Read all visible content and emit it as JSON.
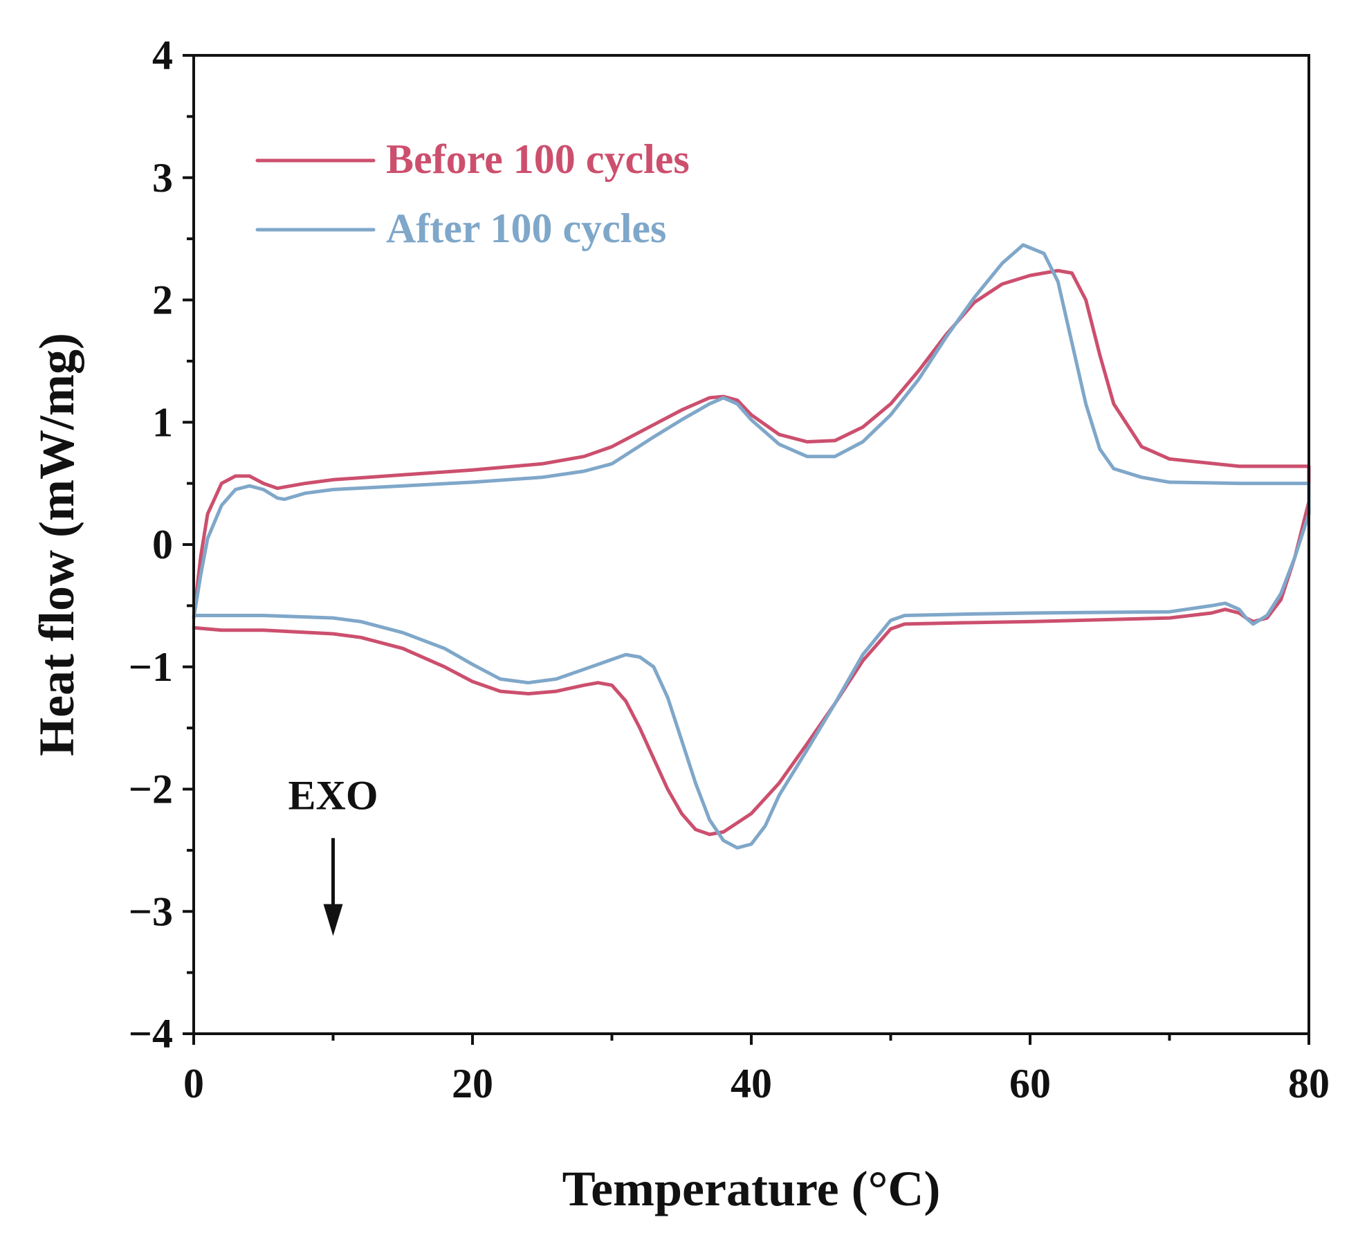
{
  "chart_data": {
    "type": "line",
    "xlabel": "Temperature (°C)",
    "ylabel": "Heat flow (mW/mg)",
    "xlim": [
      0,
      80
    ],
    "ylim": [
      -4,
      4
    ],
    "xticks": [
      0,
      20,
      40,
      60,
      80
    ],
    "yticks": [
      -4,
      -3,
      -2,
      -1,
      0,
      1,
      2,
      3,
      4
    ],
    "ytick_labels": [
      "−4",
      "−3",
      "−2",
      "−1",
      "0",
      "1",
      "2",
      "3",
      "4"
    ],
    "xminor_step": 10,
    "yminor_step": 0.5,
    "grid": false,
    "legend_position": "top-left",
    "annotation": {
      "text": "EXO",
      "x": 10,
      "y": -2.05,
      "arrow_from_y": -2.4,
      "arrow_to_y": -3.2
    },
    "series": [
      {
        "name": "Before 100 cycles",
        "color": "#cc4f6e",
        "x": [
          0,
          0.5,
          1,
          2,
          3,
          4,
          5,
          6,
          8,
          10,
          15,
          20,
          25,
          28,
          30,
          33,
          35,
          37,
          38,
          39,
          40,
          42,
          44,
          46,
          48,
          50,
          52,
          54,
          56,
          58,
          60,
          62,
          63,
          64,
          65,
          66,
          68,
          70,
          75,
          80,
          80,
          79,
          78,
          77,
          76,
          75.5,
          75,
          74,
          73,
          70,
          60,
          55,
          51,
          50,
          48,
          46,
          44,
          42,
          40,
          38,
          37,
          36,
          35,
          34,
          33,
          32,
          31,
          30,
          29,
          28,
          26,
          24,
          22,
          20,
          18,
          15,
          12,
          10,
          5,
          2,
          0
        ],
        "y": [
          -0.6,
          -0.1,
          0.25,
          0.5,
          0.56,
          0.56,
          0.5,
          0.46,
          0.5,
          0.53,
          0.57,
          0.61,
          0.66,
          0.72,
          0.8,
          0.98,
          1.1,
          1.2,
          1.21,
          1.18,
          1.06,
          0.9,
          0.84,
          0.85,
          0.96,
          1.15,
          1.42,
          1.72,
          1.98,
          2.13,
          2.2,
          2.24,
          2.22,
          2.0,
          1.55,
          1.15,
          0.8,
          0.7,
          0.64,
          0.64,
          0.35,
          -0.1,
          -0.45,
          -0.6,
          -0.63,
          -0.6,
          -0.56,
          -0.53,
          -0.56,
          -0.6,
          -0.63,
          -0.64,
          -0.65,
          -0.69,
          -0.95,
          -1.3,
          -1.63,
          -1.95,
          -2.2,
          -2.35,
          -2.37,
          -2.33,
          -2.2,
          -2.0,
          -1.75,
          -1.5,
          -1.28,
          -1.15,
          -1.13,
          -1.15,
          -1.2,
          -1.22,
          -1.2,
          -1.12,
          -1.0,
          -0.85,
          -0.76,
          -0.73,
          -0.7,
          -0.7,
          -0.68
        ]
      },
      {
        "name": "After 100 cycles",
        "color": "#7fa7c9",
        "x": [
          0,
          0.5,
          1,
          2,
          3,
          4,
          5,
          6,
          6.5,
          8,
          10,
          15,
          20,
          25,
          28,
          30,
          33,
          35,
          37,
          38,
          39,
          40,
          42,
          44,
          46,
          48,
          50,
          52,
          54,
          56,
          58,
          59.5,
          61,
          62,
          63,
          64,
          65,
          66,
          68,
          70,
          75,
          80,
          80,
          79,
          78,
          77,
          76,
          75.5,
          75,
          74,
          73,
          70,
          60,
          55,
          51,
          50,
          48,
          46,
          44,
          42,
          41,
          40,
          39,
          38,
          37,
          36,
          35,
          34,
          33,
          32,
          31,
          30,
          28,
          26,
          24,
          22,
          20,
          18,
          15,
          12,
          10,
          5,
          2,
          0
        ],
        "y": [
          -0.6,
          -0.25,
          0.05,
          0.32,
          0.45,
          0.48,
          0.45,
          0.38,
          0.37,
          0.42,
          0.45,
          0.48,
          0.51,
          0.55,
          0.6,
          0.66,
          0.88,
          1.02,
          1.15,
          1.2,
          1.15,
          1.02,
          0.82,
          0.72,
          0.72,
          0.84,
          1.06,
          1.35,
          1.7,
          2.02,
          2.3,
          2.45,
          2.38,
          2.15,
          1.65,
          1.15,
          0.78,
          0.62,
          0.55,
          0.51,
          0.5,
          0.5,
          0.25,
          -0.1,
          -0.4,
          -0.58,
          -0.65,
          -0.6,
          -0.53,
          -0.48,
          -0.5,
          -0.55,
          -0.56,
          -0.57,
          -0.58,
          -0.62,
          -0.9,
          -1.3,
          -1.68,
          -2.05,
          -2.3,
          -2.45,
          -2.48,
          -2.42,
          -2.25,
          -1.95,
          -1.6,
          -1.25,
          -1.0,
          -0.92,
          -0.9,
          -0.94,
          -1.02,
          -1.1,
          -1.13,
          -1.1,
          -0.98,
          -0.85,
          -0.72,
          -0.63,
          -0.6,
          -0.58,
          -0.58,
          -0.58
        ]
      }
    ]
  }
}
